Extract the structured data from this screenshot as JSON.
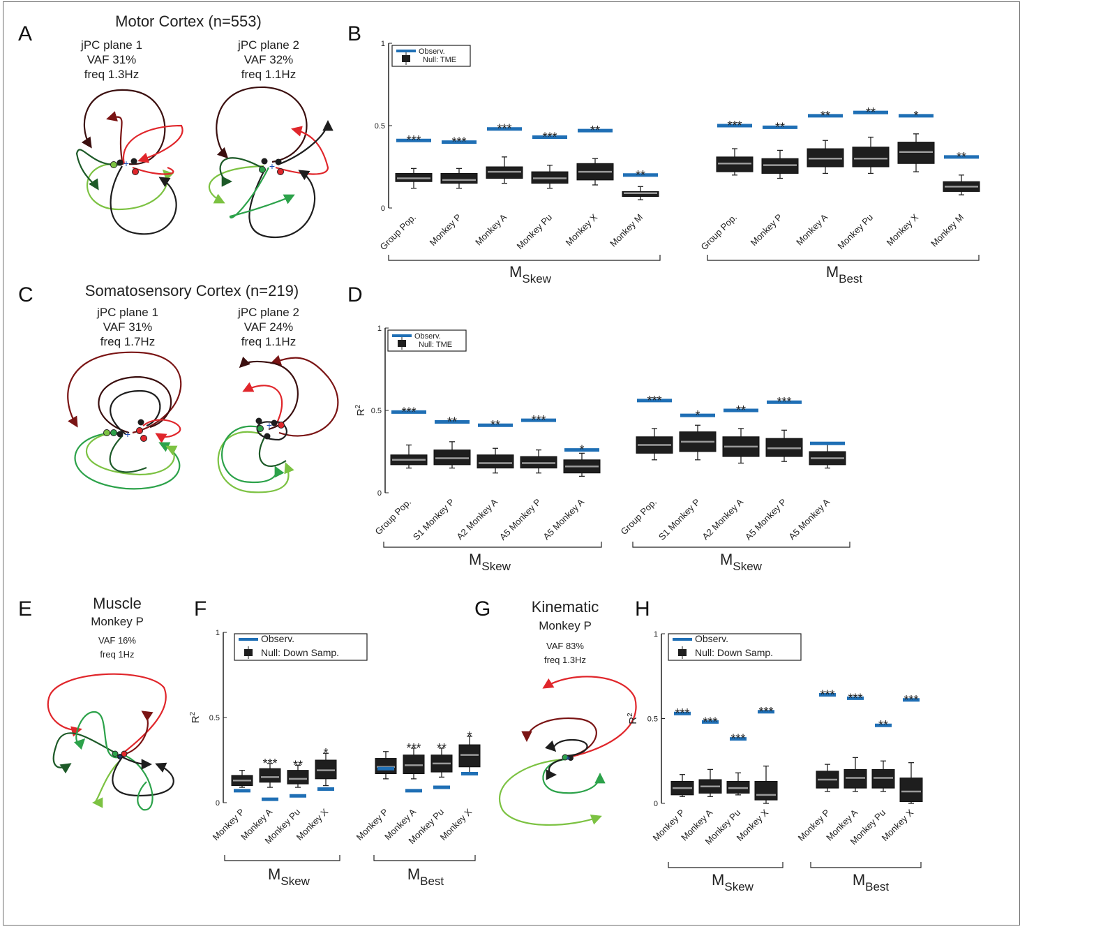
{
  "panels": {
    "A": {
      "label": "A",
      "title": "Motor Cortex (n=553)",
      "plane1": {
        "name": "jPC plane 1",
        "vaf": "VAF 31%",
        "freq": "freq 1.3Hz"
      },
      "plane2": {
        "name": "jPC plane 2",
        "vaf": "VAF 32%",
        "freq": "freq 1.1Hz"
      }
    },
    "B": {
      "label": "B"
    },
    "C": {
      "label": "C",
      "title": "Somatosensory Cortex (n=219)",
      "plane1": {
        "name": "jPC plane 1",
        "vaf": "VAF 31%",
        "freq": "freq 1.7Hz"
      },
      "plane2": {
        "name": "jPC plane 2",
        "vaf": "VAF 24%",
        "freq": "freq 1.1Hz"
      }
    },
    "D": {
      "label": "D"
    },
    "E": {
      "label": "E",
      "title": "Muscle",
      "subtitle": "Monkey P",
      "vaf": "VAF 16%",
      "freq": "freq 1Hz"
    },
    "F": {
      "label": "F"
    },
    "G": {
      "label": "G",
      "title": "Kinematic",
      "subtitle": "Monkey P",
      "vaf": "VAF 83%",
      "freq": "freq 1.3Hz"
    },
    "H": {
      "label": "H"
    }
  },
  "colors": {
    "observed": "#1f6fb5",
    "null_box": "#1e1e1e",
    "median": "#9a9a9a",
    "red": "#e0262b",
    "darkred": "#7a1414",
    "green": "#2ca24a",
    "lightgreen": "#7cc242",
    "darkgreen": "#1d5a28"
  },
  "chart_data": [
    {
      "id": "B",
      "type": "box",
      "yticks": [
        "0",
        "0.5",
        "1"
      ],
      "ylim": [
        0,
        1
      ],
      "ylabel": "",
      "legend": {
        "observed": "Observ.",
        "null": "Null: TME"
      },
      "groups": [
        {
          "name": "M",
          "sub": "Skew",
          "categories": [
            "Group Pop.",
            "Monkey P",
            "Monkey A",
            "Monkey Pu",
            "Monkey X",
            "Monkey M"
          ],
          "observed": [
            0.41,
            0.4,
            0.48,
            0.43,
            0.47,
            0.2
          ],
          "stars": [
            "***",
            "***",
            "***",
            "***",
            "**",
            "**"
          ],
          "boxes": [
            [
              0.12,
              0.16,
              0.18,
              0.21,
              0.24
            ],
            [
              0.12,
              0.15,
              0.17,
              0.21,
              0.24
            ],
            [
              0.15,
              0.18,
              0.22,
              0.25,
              0.31
            ],
            [
              0.12,
              0.15,
              0.18,
              0.22,
              0.26
            ],
            [
              0.14,
              0.17,
              0.22,
              0.27,
              0.3
            ],
            [
              0.05,
              0.07,
              0.09,
              0.1,
              0.13
            ]
          ]
        },
        {
          "name": "M",
          "sub": "Best",
          "categories": [
            "Group Pop.",
            "Monkey P",
            "Monkey A",
            "Monkey Pu",
            "Monkey X",
            "Monkey M"
          ],
          "observed": [
            0.5,
            0.49,
            0.56,
            0.58,
            0.56,
            0.31
          ],
          "stars": [
            "***",
            "**",
            "**",
            "**",
            "*",
            "**"
          ],
          "boxes": [
            [
              0.2,
              0.22,
              0.27,
              0.31,
              0.36
            ],
            [
              0.18,
              0.21,
              0.26,
              0.3,
              0.35
            ],
            [
              0.21,
              0.25,
              0.3,
              0.36,
              0.41
            ],
            [
              0.21,
              0.25,
              0.3,
              0.37,
              0.43
            ],
            [
              0.22,
              0.27,
              0.34,
              0.4,
              0.45
            ],
            [
              0.08,
              0.1,
              0.13,
              0.16,
              0.2
            ]
          ]
        }
      ]
    },
    {
      "id": "D",
      "type": "box",
      "yticks": [
        "0",
        "0.5",
        "1"
      ],
      "ylim": [
        0,
        1
      ],
      "ylabel": "R",
      "legend": {
        "observed": "Observ.",
        "null": "Null: TME"
      },
      "groups": [
        {
          "name": "M",
          "sub": "Skew",
          "categories": [
            "Group Pop.",
            "S1 Monkey P",
            "A2 Monkey A",
            "A5 Monkey P",
            "A5 Monkey A"
          ],
          "observed": [
            0.49,
            0.43,
            0.41,
            0.44,
            0.26
          ],
          "stars": [
            "***",
            "**",
            "**",
            "***",
            "*"
          ],
          "boxes": [
            [
              0.15,
              0.17,
              0.2,
              0.23,
              0.29
            ],
            [
              0.15,
              0.17,
              0.21,
              0.26,
              0.31
            ],
            [
              0.12,
              0.15,
              0.18,
              0.23,
              0.27
            ],
            [
              0.12,
              0.15,
              0.18,
              0.22,
              0.26
            ],
            [
              0.1,
              0.12,
              0.16,
              0.2,
              0.24
            ]
          ]
        },
        {
          "name": "M",
          "sub": "Skew",
          "categories": [
            "Group Pop.",
            "S1 Monkey P",
            "A2 Monkey A",
            "A5 Monkey P",
            "A5 Monkey A"
          ],
          "observed": [
            0.56,
            0.47,
            0.5,
            0.55,
            0.3
          ],
          "stars": [
            "***",
            "*",
            "**",
            "***",
            ""
          ],
          "boxes": [
            [
              0.2,
              0.24,
              0.29,
              0.34,
              0.39
            ],
            [
              0.2,
              0.25,
              0.31,
              0.37,
              0.41
            ],
            [
              0.18,
              0.22,
              0.28,
              0.34,
              0.39
            ],
            [
              0.19,
              0.22,
              0.27,
              0.33,
              0.38
            ],
            [
              0.15,
              0.17,
              0.21,
              0.25,
              0.3
            ]
          ]
        }
      ]
    },
    {
      "id": "F",
      "type": "box",
      "yticks": [
        "0",
        "0.5",
        "1"
      ],
      "ylim": [
        0,
        1
      ],
      "ylabel": "R",
      "legend": {
        "observed": "Observ.",
        "null": "Null: Down Samp."
      },
      "groups": [
        {
          "name": "M",
          "sub": "Skew",
          "categories": [
            "Monkey P",
            "Monkey A",
            "Monkey Pu",
            "Monkey X"
          ],
          "observed": [
            0.07,
            0.02,
            0.04,
            0.08
          ],
          "stars": [
            "",
            "***",
            "**",
            "*"
          ],
          "boxes": [
            [
              0.09,
              0.1,
              0.13,
              0.16,
              0.19
            ],
            [
              0.09,
              0.12,
              0.15,
              0.2,
              0.23
            ],
            [
              0.09,
              0.11,
              0.14,
              0.19,
              0.22
            ],
            [
              0.1,
              0.14,
              0.19,
              0.25,
              0.29
            ]
          ]
        },
        {
          "name": "M",
          "sub": "Best",
          "categories": [
            "Monkey P",
            "Monkey A",
            "Monkey Pu",
            "Monkey X"
          ],
          "observed": [
            0.2,
            0.07,
            0.09,
            0.17
          ],
          "stars": [
            "",
            "***",
            "**",
            "*"
          ],
          "boxes": [
            [
              0.14,
              0.17,
              0.21,
              0.26,
              0.3
            ],
            [
              0.14,
              0.17,
              0.22,
              0.28,
              0.32
            ],
            [
              0.15,
              0.18,
              0.23,
              0.28,
              0.32
            ],
            [
              0.17,
              0.21,
              0.28,
              0.34,
              0.39
            ]
          ]
        }
      ]
    },
    {
      "id": "H",
      "type": "box",
      "yticks": [
        "0",
        "0.5",
        "1"
      ],
      "ylim": [
        0,
        1
      ],
      "ylabel": "R",
      "legend": {
        "observed": "Observ.",
        "null": "Null: Down Samp."
      },
      "groups": [
        {
          "name": "M",
          "sub": "Skew",
          "categories": [
            "Monkey P",
            "Monkey A",
            "Monkey Pu",
            "Monkey X"
          ],
          "observed": [
            0.53,
            0.48,
            0.38,
            0.54
          ],
          "stars": [
            "***",
            "***",
            "***",
            "***"
          ],
          "boxes": [
            [
              0.04,
              0.05,
              0.09,
              0.13,
              0.17
            ],
            [
              0.04,
              0.06,
              0.1,
              0.14,
              0.2
            ],
            [
              0.05,
              0.06,
              0.09,
              0.13,
              0.18
            ],
            [
              0.0,
              0.02,
              0.05,
              0.13,
              0.22
            ]
          ]
        },
        {
          "name": "M",
          "sub": "Best",
          "categories": [
            "Monkey P",
            "Monkey A",
            "Monkey Pu",
            "Monkey X"
          ],
          "observed": [
            0.64,
            0.62,
            0.46,
            0.61
          ],
          "stars": [
            "***",
            "***",
            "**",
            "***"
          ],
          "boxes": [
            [
              0.07,
              0.09,
              0.14,
              0.19,
              0.23
            ],
            [
              0.07,
              0.09,
              0.15,
              0.2,
              0.27
            ],
            [
              0.07,
              0.09,
              0.15,
              0.2,
              0.25
            ],
            [
              0.0,
              0.01,
              0.07,
              0.15,
              0.24
            ]
          ]
        }
      ]
    }
  ]
}
